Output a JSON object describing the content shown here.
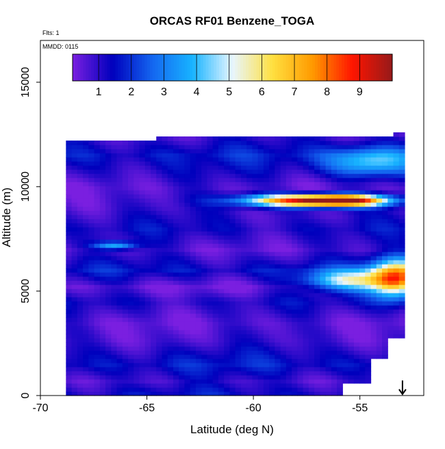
{
  "chart_data": {
    "type": "heatmap",
    "title": "ORCAS RF01 Benzene_TOGA",
    "annotations": {
      "flights": "Flts: 1",
      "date": "MMDD: 0115"
    },
    "xlabel": "Latitude (deg N)",
    "ylabel": "Altitude (m)",
    "xlim": [
      -70,
      -52
    ],
    "ylim": [
      0,
      17000
    ],
    "x_ticks": [
      -70,
      -65,
      -60,
      -55
    ],
    "x_tick_labels": [
      "-70",
      "-65",
      "-60",
      "-55"
    ],
    "y_ticks": [
      0,
      5000,
      10000,
      15000
    ],
    "y_tick_labels": [
      "0",
      "5000",
      "10000",
      "15000"
    ],
    "grid": false,
    "colorbar": {
      "range": [
        0.2,
        10
      ],
      "ticks": [
        1,
        2,
        3,
        4,
        5,
        6,
        7,
        8,
        9
      ],
      "tick_labels": [
        "1",
        "2",
        "3",
        "4",
        "5",
        "6",
        "7",
        "8",
        "9"
      ],
      "colors": [
        "#7a1fe0",
        "#0000bd",
        "#1466f0",
        "#18b4ff",
        "#e8f6ff",
        "#ffe040",
        "#ff9a00",
        "#ff1500",
        "#951a1a"
      ]
    },
    "field": {
      "x_range": [
        -68.8,
        -52.9
      ],
      "y_range": [
        0,
        12600
      ],
      "base_levels": [
        [
          0,
          1.5
        ],
        [
          700,
          0.9
        ],
        [
          1500,
          1.7
        ],
        [
          2600,
          0.8
        ],
        [
          3500,
          0.5
        ],
        [
          4500,
          1.2
        ],
        [
          5200,
          0.4
        ],
        [
          6000,
          1.6
        ],
        [
          7000,
          0.6
        ],
        [
          8000,
          1.3
        ],
        [
          9000,
          0.8
        ],
        [
          10000,
          0.6
        ],
        [
          11500,
          1.7
        ],
        [
          12600,
          0.7
        ]
      ],
      "hotspots": [
        {
          "lat": -55.8,
          "alt": 9350,
          "peak": 9.0,
          "lat_width": 2.2,
          "alt_width": 280
        },
        {
          "lat": -58.5,
          "alt": 9350,
          "peak": 5.5,
          "lat_width": 2.5,
          "alt_width": 300
        },
        {
          "lat": -53.3,
          "alt": 5600,
          "peak": 7.0,
          "lat_width": 1.2,
          "alt_width": 900
        },
        {
          "lat": -55.5,
          "alt": 5500,
          "peak": 4.0,
          "lat_width": 2.0,
          "alt_width": 500
        },
        {
          "lat": -54.5,
          "alt": 11200,
          "peak": 3.2,
          "lat_width": 2.0,
          "alt_width": 700
        },
        {
          "lat": -66.5,
          "alt": 7200,
          "peak": 3.0,
          "lat_width": 1.0,
          "alt_width": 200
        }
      ]
    },
    "wind_arrow": {
      "lat": -53.0,
      "direction": "down"
    }
  }
}
